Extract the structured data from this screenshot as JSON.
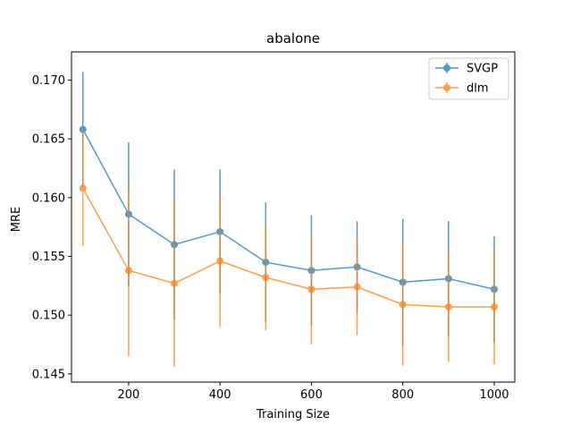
{
  "chart_data": {
    "type": "line",
    "title": "abalone",
    "xlabel": "Training Size",
    "ylabel": "MRE",
    "xlim": [
      75,
      1045
    ],
    "ylim": [
      0.1443,
      0.1724
    ],
    "x": [
      100,
      200,
      300,
      400,
      500,
      600,
      700,
      800,
      900,
      1000
    ],
    "xticks": [
      200,
      400,
      600,
      800,
      1000
    ],
    "yticks": [
      0.145,
      0.15,
      0.155,
      0.16,
      0.165,
      0.17
    ],
    "xtick_labels": [
      "200",
      "400",
      "600",
      "800",
      "1000"
    ],
    "ytick_labels": [
      "0.145",
      "0.150",
      "0.155",
      "0.160",
      "0.165",
      "0.170"
    ],
    "grid": false,
    "legend_position": "top-right",
    "series": [
      {
        "name": "SVGP",
        "color": "#1f77b4",
        "values": [
          0.1658,
          0.1586,
          0.156,
          0.1571,
          0.1545,
          0.1538,
          0.1541,
          0.1528,
          0.1531,
          0.1522
        ],
        "error": [
          0.0049,
          0.0061,
          0.0064,
          0.0053,
          0.0051,
          0.0047,
          0.0039,
          0.0054,
          0.0049,
          0.0045
        ]
      },
      {
        "name": "dlm",
        "color": "#ff7f0e",
        "values": [
          0.1608,
          0.1538,
          0.1527,
          0.1546,
          0.1532,
          0.1522,
          0.1524,
          0.1509,
          0.1507,
          0.1507
        ],
        "error": [
          0.0049,
          0.0073,
          0.0071,
          0.0056,
          0.0045,
          0.0047,
          0.0041,
          0.0052,
          0.0047,
          0.0049
        ]
      }
    ]
  }
}
